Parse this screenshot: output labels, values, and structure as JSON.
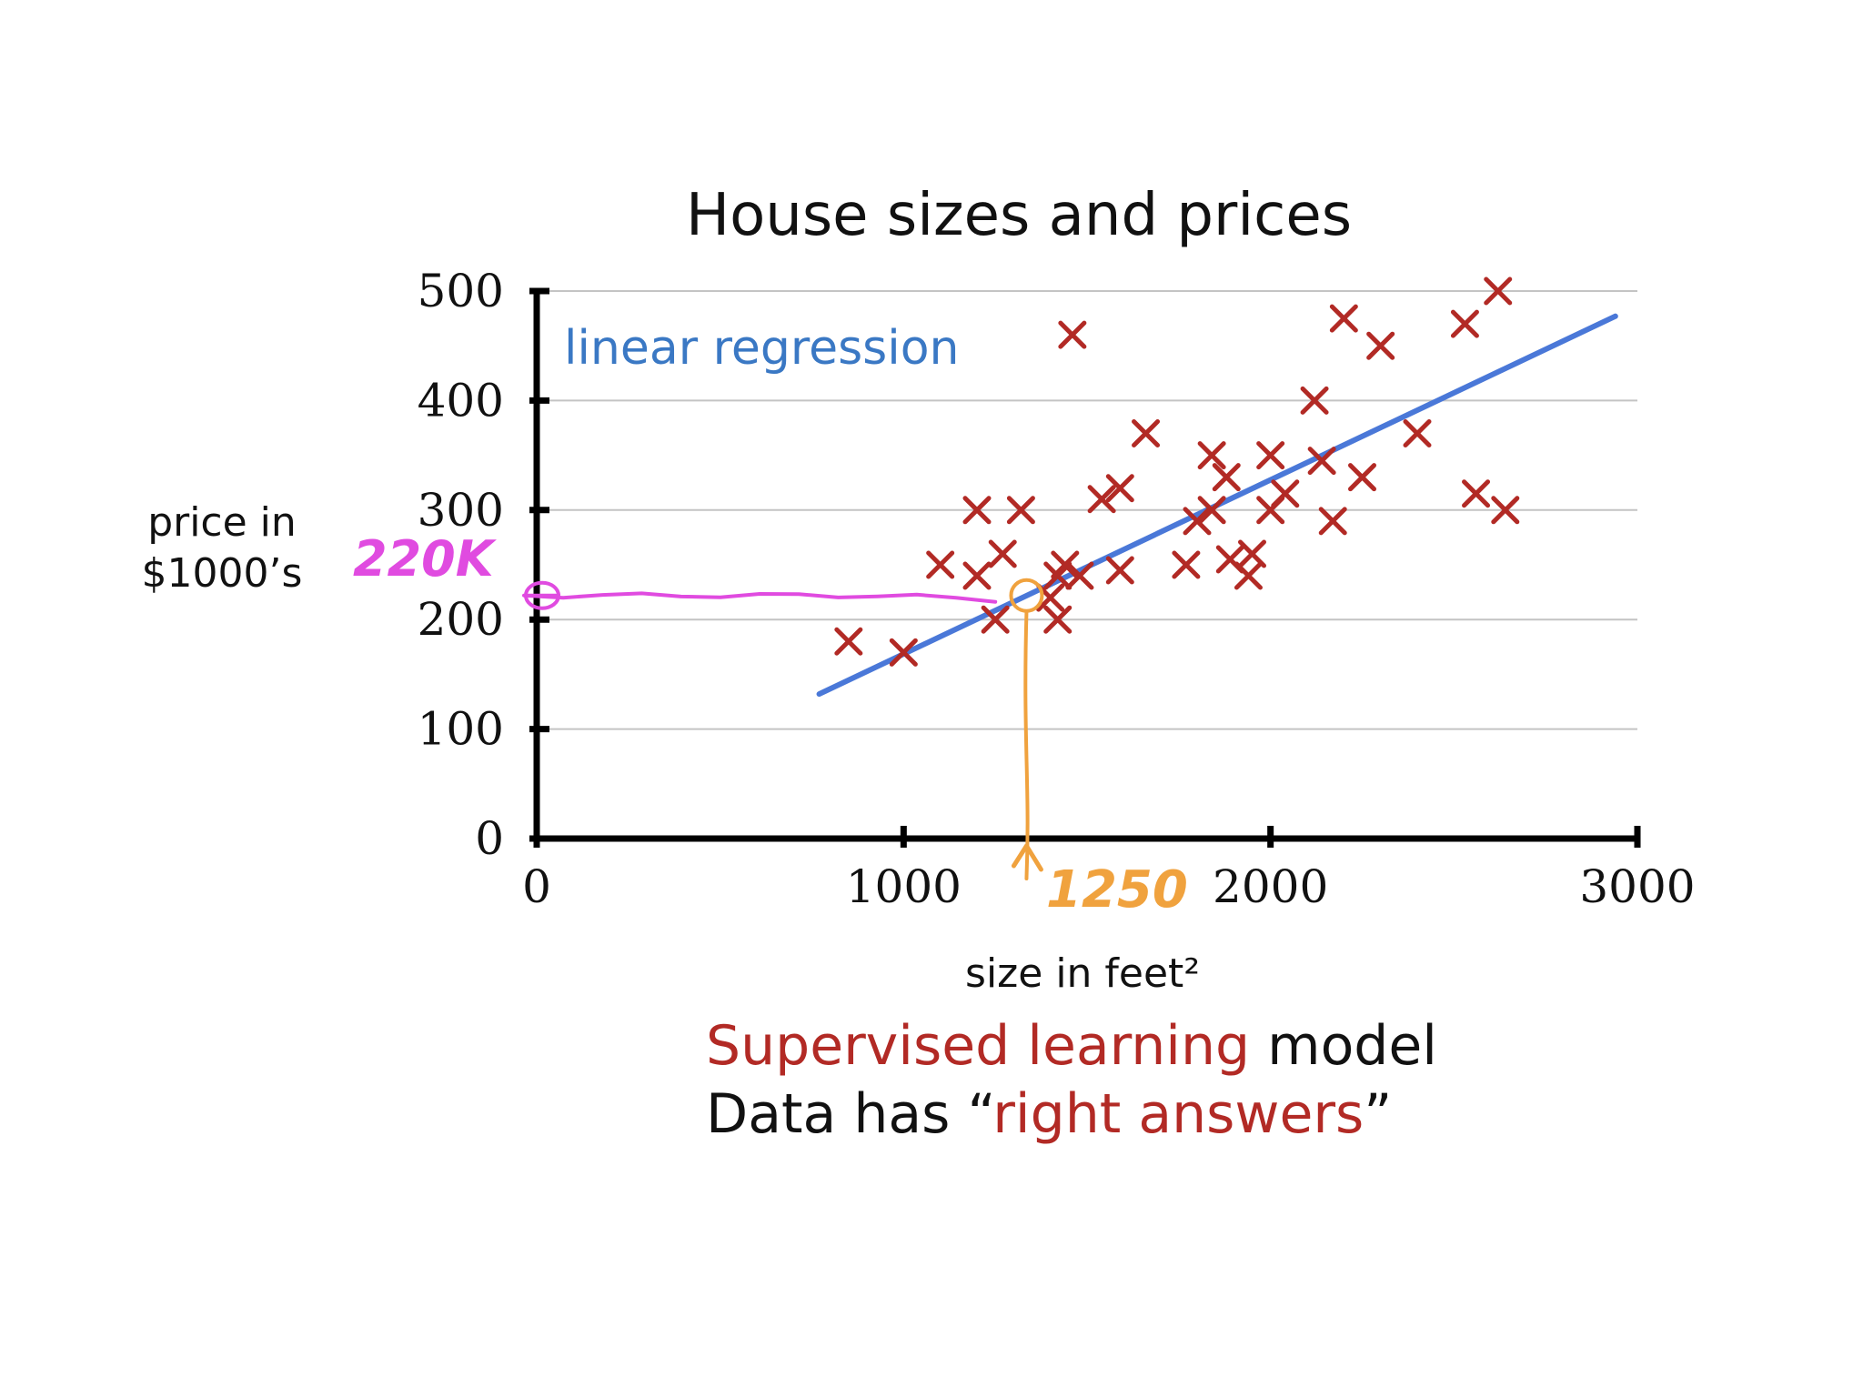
{
  "chart_data": {
    "type": "scatter",
    "title": "House sizes and prices",
    "xlabel": "size in feet²",
    "ylabel_lines": [
      "price in",
      "$1000’s"
    ],
    "xlim": [
      0,
      3000
    ],
    "ylim": [
      0,
      500
    ],
    "x_ticks": [
      0,
      1000,
      2000,
      3000
    ],
    "y_ticks": [
      0,
      100,
      200,
      300,
      400,
      500
    ],
    "grid": true,
    "series": [
      {
        "marker": "x",
        "color": "#b22a25",
        "points": [
          [
            850,
            180
          ],
          [
            1000,
            170
          ],
          [
            1100,
            250
          ],
          [
            1200,
            300
          ],
          [
            1200,
            240
          ],
          [
            1250,
            200
          ],
          [
            1270,
            260
          ],
          [
            1320,
            300
          ],
          [
            1400,
            220
          ],
          [
            1420,
            240
          ],
          [
            1440,
            250
          ],
          [
            1420,
            200
          ],
          [
            1460,
            460
          ],
          [
            1480,
            240
          ],
          [
            1540,
            310
          ],
          [
            1590,
            320
          ],
          [
            1590,
            245
          ],
          [
            1660,
            370
          ],
          [
            1770,
            250
          ],
          [
            1800,
            290
          ],
          [
            1840,
            300
          ],
          [
            1840,
            350
          ],
          [
            1880,
            330
          ],
          [
            1890,
            255
          ],
          [
            1940,
            240
          ],
          [
            1950,
            260
          ],
          [
            2000,
            300
          ],
          [
            2000,
            350
          ],
          [
            2040,
            315
          ],
          [
            2140,
            345
          ],
          [
            2120,
            400
          ],
          [
            2170,
            290
          ],
          [
            2200,
            475
          ],
          [
            2250,
            330
          ],
          [
            2300,
            450
          ],
          [
            2400,
            370
          ],
          [
            2530,
            470
          ],
          [
            2560,
            315
          ],
          [
            2620,
            500
          ],
          [
            2640,
            300
          ]
        ]
      }
    ],
    "regression_line": {
      "label": "linear regression",
      "color": "#4a78d8",
      "from": [
        770,
        132
      ],
      "to": [
        2940,
        477
      ]
    },
    "annotations": {
      "price_reading": {
        "text": "220K",
        "color": "#e04be0",
        "y": 222,
        "x_end": 1250
      },
      "size_reading": {
        "text": "1250",
        "color": "#f0a23e",
        "x": 1335,
        "y": 222
      }
    }
  },
  "caption": {
    "line1_accent": "Supervised learning",
    "line1_rest": " model",
    "line2_start": "Data has “",
    "line2_accent": "right answers",
    "line2_end": "”"
  },
  "colors": {
    "marker": "#b22a25",
    "regression": "#4a78d8",
    "accent_text": "#b22a25",
    "grid": "#c4c4c4",
    "axis": "#000000"
  }
}
